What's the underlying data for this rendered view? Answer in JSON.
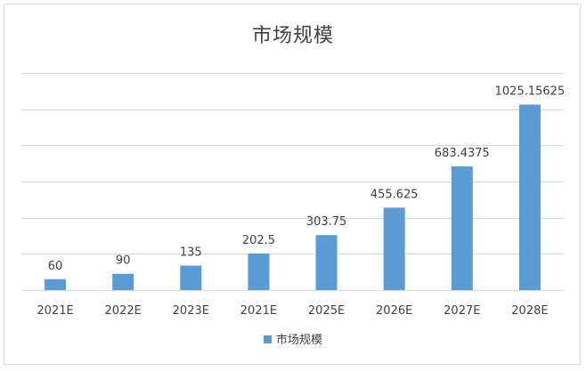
{
  "chart_data": {
    "type": "bar",
    "title": "市场规模",
    "categories": [
      "2021E",
      "2022E",
      "2023E",
      "2021E",
      "2025E",
      "2026E",
      "2027E",
      "2028E"
    ],
    "series": [
      {
        "name": "市场规模",
        "values": [
          60,
          90,
          135,
          202.5,
          303.75,
          455.625,
          683.4375,
          1025.15625
        ],
        "labels": [
          "60",
          "90",
          "135",
          "202.5",
          "303.75",
          "455.625",
          "683.4375",
          "1025.15625"
        ],
        "color": "#5b9bd5"
      }
    ],
    "ylim": [
      0,
      1200
    ],
    "grid": true,
    "legend_position": "bottom"
  }
}
